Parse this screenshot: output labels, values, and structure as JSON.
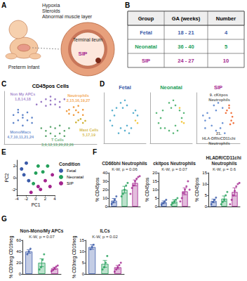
{
  "panel_labels": [
    "A",
    "B",
    "C",
    "D",
    "E",
    "F",
    "G"
  ],
  "illustration": {
    "subject": "Preterm Infant",
    "risk_factors": [
      "Hypoxia",
      "Steroids",
      "Abnormal muscle layer"
    ],
    "organ": "Terminal ileum",
    "lesion": "SIP"
  },
  "table": {
    "header": [
      "Group",
      "GA (weeks)",
      "Number"
    ],
    "rows": [
      {
        "cells": [
          "Fetal",
          "18 - 21",
          4
        ],
        "color": "#3b5ba9"
      },
      {
        "cells": [
          "Neonatal",
          "36 - 40",
          5
        ],
        "color": "#23a05a"
      },
      {
        "cells": [
          "SIP",
          "24 - 27",
          10
        ],
        "color": "#a3258e"
      }
    ]
  },
  "chart_data": [
    {
      "type": "scatter",
      "title": "CD45pos Cells",
      "tick_labels": false,
      "grid": false,
      "xlim": [
        -10,
        10
      ],
      "ylim": [
        -10,
        10
      ],
      "series": [
        {
          "name": "Non My APCs",
          "clusters": "1,8,14,18",
          "color": "#8e6bbf",
          "label_at": [
            -6,
            8
          ],
          "values": [
            [
              -2,
              6
            ],
            [
              -1,
              7
            ],
            [
              0,
              8
            ],
            [
              1,
              7
            ],
            [
              2,
              6
            ],
            [
              0,
              5
            ],
            [
              -1,
              4.5
            ],
            [
              1,
              5
            ],
            [
              3,
              7
            ],
            [
              -3,
              5
            ],
            [
              0,
              6.5
            ],
            [
              2,
              4
            ]
          ]
        },
        {
          "name": "Mono/Macs",
          "clusters": "4,7,10,11,21,24",
          "color": "#4f78c4",
          "label_at": [
            -6.5,
            -6.5
          ],
          "values": [
            [
              -8,
              1
            ],
            [
              -7,
              2
            ],
            [
              -6,
              0
            ],
            [
              -7,
              -1
            ],
            [
              -5,
              2
            ],
            [
              -6,
              -3
            ],
            [
              -8,
              -2
            ],
            [
              -4,
              0
            ],
            [
              -5,
              -1
            ],
            [
              -7,
              3
            ],
            [
              -6,
              1
            ],
            [
              -4,
              -2
            ]
          ]
        },
        {
          "name": "Neutrophils",
          "clusters": "2,15,16,19,27",
          "color": "#f0912c",
          "label_at": [
            6,
            7.5
          ],
          "values": [
            [
              4,
              3
            ],
            [
              5,
              4
            ],
            [
              6,
              2
            ],
            [
              5,
              1
            ],
            [
              7,
              3
            ],
            [
              4,
              1.5
            ],
            [
              6,
              4.5
            ],
            [
              3.5,
              2.5
            ],
            [
              7,
              1
            ],
            [
              5.5,
              2.8
            ]
          ]
        },
        {
          "name": "Mast Cells",
          "clusters": "5,17,19",
          "color": "#c9a820",
          "label_at": [
            8.3,
            -5.5
          ],
          "values": [
            [
              6,
              -1
            ],
            [
              7,
              -2
            ],
            [
              5.5,
              -1.8
            ],
            [
              6.5,
              -0.5
            ],
            [
              7.5,
              -1.2
            ]
          ]
        },
        {
          "name": "T Cells",
          "clusters": "3,6,12,13,20,22,26",
          "color": "#4e9f62",
          "label_at": [
            1.5,
            -9.3
          ],
          "values": [
            [
              -1,
              -5
            ],
            [
              0,
              -6
            ],
            [
              1,
              -4
            ],
            [
              2,
              -6
            ],
            [
              3,
              -5
            ],
            [
              0,
              -3.5
            ],
            [
              -2,
              -4
            ],
            [
              1,
              -7
            ],
            [
              4,
              -4
            ],
            [
              2,
              -3
            ],
            [
              -1,
              -7
            ],
            [
              3,
              -7
            ]
          ]
        }
      ]
    },
    {
      "type": "scatter",
      "title": "Fetal",
      "color": "#3b5ba9",
      "tick_labels": false,
      "grid": false,
      "xlim": [
        -10,
        10
      ],
      "ylim": [
        -10,
        10
      ],
      "series": [
        {
          "color": "#46a6c9",
          "values": [
            [
              -6,
              3
            ],
            [
              -5,
              1
            ],
            [
              -7,
              -1
            ],
            [
              -4,
              4
            ],
            [
              -2,
              6
            ],
            [
              0,
              7
            ],
            [
              1,
              5
            ],
            [
              -1,
              4
            ],
            [
              5,
              3
            ],
            [
              6,
              1
            ],
            [
              4,
              2
            ],
            [
              0,
              -5
            ],
            [
              2,
              -6
            ],
            [
              -2,
              -4
            ],
            [
              3,
              -4
            ],
            [
              -6,
              -3
            ],
            [
              1,
              -3
            ],
            [
              -3,
              -6
            ]
          ]
        },
        {
          "color": "#f2c12e",
          "values": [
            [
              5,
              -1
            ],
            [
              6,
              -2
            ]
          ]
        }
      ]
    },
    {
      "type": "scatter",
      "title": "Neonatal",
      "color": "#23a05a",
      "tick_labels": false,
      "grid": false,
      "xlim": [
        -10,
        10
      ],
      "ylim": [
        -10,
        10
      ],
      "series": [
        {
          "color": "#48b06a",
          "values": [
            [
              -7,
              2
            ],
            [
              -5,
              0
            ],
            [
              -6,
              -2
            ],
            [
              -4,
              3
            ],
            [
              -1,
              6
            ],
            [
              1,
              7
            ],
            [
              2,
              5
            ],
            [
              0,
              4
            ],
            [
              4,
              3
            ],
            [
              6,
              2
            ],
            [
              5,
              0
            ],
            [
              -1,
              -5
            ],
            [
              1,
              -6
            ],
            [
              3,
              -5
            ],
            [
              -3,
              -4
            ],
            [
              -5,
              -4
            ],
            [
              2,
              -3
            ]
          ]
        },
        {
          "color": "#f2c12e",
          "values": [
            [
              6,
              -2
            ],
            [
              4,
              4
            ],
            [
              5,
              -1.5
            ]
          ]
        }
      ]
    },
    {
      "type": "scatter",
      "title": "SIP",
      "color": "#a3258e",
      "tick_labels": false,
      "grid": false,
      "xlim": [
        -10,
        10
      ],
      "ylim": [
        -10,
        10
      ],
      "series": [
        {
          "color": "#5b86cf",
          "values": [
            [
              -7,
              1
            ],
            [
              -6,
              -1
            ],
            [
              -5,
              2
            ],
            [
              -4,
              0
            ],
            [
              -2,
              5
            ],
            [
              0,
              6
            ],
            [
              2,
              4
            ],
            [
              -1,
              3
            ],
            [
              -1,
              -5
            ],
            [
              1,
              -4
            ],
            [
              3,
              -6
            ],
            [
              -3,
              -3
            ],
            [
              -6,
              -4
            ],
            [
              2,
              -2
            ]
          ]
        },
        {
          "color": "#f0642a",
          "values": [
            [
              4,
              3
            ],
            [
              5,
              4
            ],
            [
              6,
              2
            ],
            [
              5,
              5
            ],
            [
              3.5,
              2
            ],
            [
              6,
              -1
            ],
            [
              7,
              -2
            ],
            [
              5.5,
              -2.5
            ],
            [
              6.5,
              0.5
            ]
          ]
        }
      ],
      "annotations": [
        {
          "text": "9. cKitpos Neutrophils",
          "x": 0.5,
          "y": 8.3
        },
        {
          "text": "21. HLA-DRhiCD11chi Neutrophils",
          "x": 0.5,
          "y": -8
        }
      ]
    },
    {
      "type": "scatter",
      "x_label": "PC1",
      "y_label": "PC2",
      "xlim": [
        -4,
        4
      ],
      "xticks": [
        -4,
        -2,
        0,
        2,
        4
      ],
      "ylim": [
        -3,
        3
      ],
      "yticks": [
        -2,
        0,
        2
      ],
      "grid": false,
      "legend": "right",
      "legend_title": "Condition",
      "series": [
        {
          "name": "Fetal",
          "color": "#3b5ba9",
          "values": [
            [
              -3,
              1.5
            ],
            [
              -2,
              2.5
            ],
            [
              -1.5,
              -0.5
            ],
            [
              -2.5,
              0.5
            ]
          ]
        },
        {
          "name": "Neonatal",
          "color": "#23a05a",
          "values": [
            [
              0.5,
              2
            ],
            [
              1.5,
              1
            ],
            [
              -0.5,
              -1
            ],
            [
              2.5,
              2
            ],
            [
              0,
              0.8
            ]
          ]
        },
        {
          "name": "SIP",
          "color": "#a3258e",
          "values": [
            [
              1,
              -2
            ],
            [
              3,
              -1.5
            ],
            [
              -1,
              -2.5
            ],
            [
              2,
              -0.5
            ],
            [
              3.5,
              0.5
            ],
            [
              0.5,
              -1.5
            ]
          ]
        }
      ]
    },
    {
      "type": "bar",
      "title": "CD66bhi Neutrophils",
      "subtitle": "K-W, p = 0.06",
      "y_label": "% CD45pos",
      "ylim": [
        0,
        40
      ],
      "yticks": [
        0,
        10,
        20,
        30,
        40
      ],
      "tick_labels": "y",
      "grid": false,
      "groups": [
        {
          "color": "#3b5ba9",
          "mean": 7,
          "error": 2.5,
          "points": [
            3,
            5,
            8,
            12
          ]
        },
        {
          "color": "#23a05a",
          "mean": 20,
          "error": 4,
          "points": [
            12,
            15,
            20,
            25,
            28
          ]
        },
        {
          "color": "#a3258e",
          "mean": 28,
          "error": 3.5,
          "points": [
            15,
            22,
            25,
            30,
            33,
            35,
            36
          ]
        }
      ]
    },
    {
      "type": "bar",
      "title": "ckitpos Neutrophils",
      "subtitle": "K-W, p = 0.07",
      "y_label": "% CD45pos",
      "ylim": [
        0,
        20
      ],
      "yticks": [
        0,
        5,
        10,
        15,
        20
      ],
      "tick_labels": "y",
      "grid": false,
      "groups": [
        {
          "color": "#3b5ba9",
          "mean": 2.5,
          "error": 0.8,
          "points": [
            1,
            2,
            3,
            4
          ]
        },
        {
          "color": "#23a05a",
          "mean": 3,
          "error": 1,
          "points": [
            1,
            2,
            3,
            4,
            5
          ]
        },
        {
          "color": "#a3258e",
          "mean": 9,
          "error": 2,
          "points": [
            3,
            5,
            8,
            10,
            12,
            15,
            10
          ]
        }
      ]
    },
    {
      "type": "bar",
      "title": "HLADR/CD11chi Neutrophils",
      "subtitle": "K-W, p = 0.6",
      "y_label": "% CD45pos",
      "ylim": [
        0,
        15
      ],
      "yticks": [
        0,
        5,
        10,
        15
      ],
      "tick_labels": "y",
      "grid": false,
      "groups": [
        {
          "color": "#3b5ba9",
          "mean": 2.5,
          "error": 0.8,
          "points": [
            1,
            2,
            3,
            4
          ]
        },
        {
          "color": "#23a05a",
          "mean": 3.5,
          "error": 1.2,
          "points": [
            1,
            2,
            3,
            5,
            6.5
          ]
        },
        {
          "color": "#a3258e",
          "mean": 6.5,
          "error": 1.8,
          "points": [
            1,
            3,
            5,
            7,
            9,
            10,
            10.5
          ]
        }
      ]
    },
    {
      "type": "bar",
      "title": "Non-Mono/My APCs",
      "subtitle": "K-W, p = 0.07",
      "y_label": "% CD3neg CD19neg",
      "ylim": [
        0,
        60
      ],
      "yticks": [
        0,
        20,
        40,
        60
      ],
      "tick_labels": "y",
      "grid": false,
      "groups": [
        {
          "color": "#3b5ba9",
          "mean": 40,
          "error": 3,
          "points": [
            35,
            40,
            45
          ]
        },
        {
          "color": "#23a05a",
          "mean": 20,
          "error": 7,
          "points": [
            8,
            12,
            25,
            35
          ]
        },
        {
          "color": "#a3258e",
          "mean": 10,
          "error": 2,
          "points": [
            5,
            7,
            10,
            13,
            15
          ]
        }
      ]
    },
    {
      "type": "bar",
      "title": "ILCs",
      "subtitle": "K-W, p = 0.02",
      "y_label": "% CD3neg CD19neg",
      "ylim": [
        0,
        15
      ],
      "yticks": [
        0,
        5,
        10,
        15
      ],
      "tick_labels": "y",
      "grid": false,
      "groups": [
        {
          "color": "#3b5ba9",
          "mean": 12,
          "error": 1,
          "points": [
            11,
            12,
            13
          ]
        },
        {
          "color": "#23a05a",
          "mean": 4.5,
          "error": 1.5,
          "points": [
            2,
            3,
            5,
            8
          ]
        },
        {
          "color": "#a3258e",
          "mean": 3,
          "error": 0.8,
          "points": [
            1,
            2,
            3,
            4,
            5
          ]
        }
      ]
    }
  ]
}
